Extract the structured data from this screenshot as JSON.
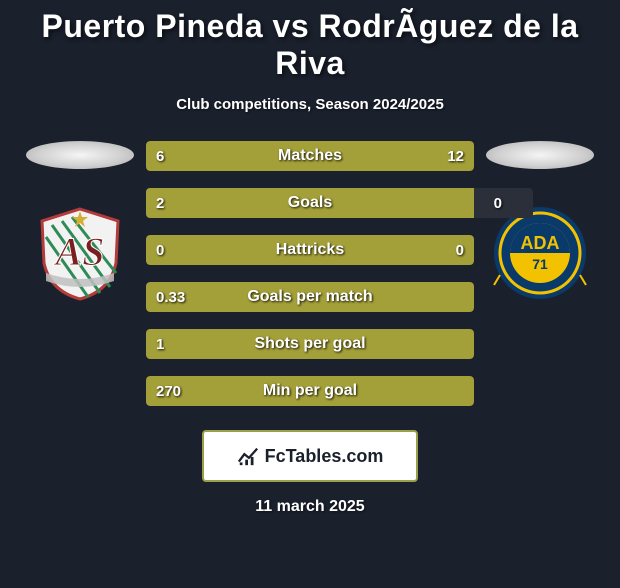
{
  "title": "Puerto Pineda vs RodrÃ­guez de la Riva",
  "subtitle": "Club competitions, Season 2024/2025",
  "date": "11 march 2025",
  "branding": {
    "text": "FcTables.com"
  },
  "colors": {
    "background": "#1a202c",
    "bar_fill": "#a4a039",
    "bar_empty": "#2a2f3a",
    "text": "#ffffff",
    "brand_border": "#9aa04a",
    "brand_bg": "#ffffff"
  },
  "crest_left": {
    "shield_stroke": "#b23b3b",
    "shield_fill": "#f2f2f2",
    "stripes": "#2e8b57",
    "banner": "#c0c0c0",
    "letters": "#7a1f1f",
    "star": "#d4af37"
  },
  "crest_right": {
    "ring_outer": "#0a3a6a",
    "ring_accent": "#f2c200",
    "center_top": "#0a3a6a",
    "center_bottom": "#f2c200",
    "text": "#0a3a6a"
  },
  "bars": [
    {
      "label": "Matches",
      "left": "6",
      "right": "12",
      "left_pct": 33.3,
      "right_pct": 66.7
    },
    {
      "label": "Goals",
      "left": "2",
      "right": "0",
      "left_pct": 100,
      "right_pct": 0,
      "right_empty": true
    },
    {
      "label": "Hattricks",
      "left": "0",
      "right": "0",
      "full_fill": true
    },
    {
      "label": "Goals per match",
      "left": "0.33",
      "right": "",
      "full_fill": true
    },
    {
      "label": "Shots per goal",
      "left": "1",
      "right": "",
      "full_fill": true
    },
    {
      "label": "Min per goal",
      "left": "270",
      "right": "",
      "full_fill": true
    }
  ],
  "typography": {
    "title_fontsize": 32,
    "subtitle_fontsize": 15,
    "bar_label_fontsize": 16,
    "bar_value_fontsize": 15,
    "date_fontsize": 16
  }
}
